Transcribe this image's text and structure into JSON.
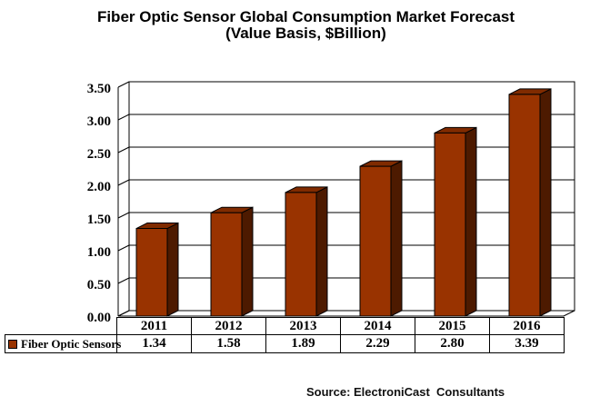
{
  "title": {
    "line1": "Fiber Optic Sensor Global Consumption Market Forecast",
    "line2": "(Value Basis, $Billion)"
  },
  "legend": {
    "label": "Fiber Optic Sensors",
    "marker_color": "#993300"
  },
  "source": "Source: ElectroniCast  Consultants",
  "colors": {
    "bar_front": "#993300",
    "bar_top": "#802B00",
    "bar_side": "#4D1A00",
    "outline": "#000000",
    "background": "#FFFFFF"
  },
  "chart_data": {
    "type": "bar",
    "style": "3d-column",
    "title": "Fiber Optic Sensor Global Consumption Market Forecast (Value Basis, $Billion)",
    "categories": [
      "2011",
      "2012",
      "2013",
      "2014",
      "2015",
      "2016"
    ],
    "series": [
      {
        "name": "Fiber Optic Sensors",
        "values": [
          1.34,
          1.58,
          1.89,
          2.29,
          2.8,
          3.39
        ]
      }
    ],
    "value_labels": [
      "1.34",
      "1.58",
      "1.89",
      "2.29",
      "2.80",
      "3.39"
    ],
    "xlabel": "",
    "ylabel": "",
    "ylim": [
      0.0,
      3.5
    ],
    "ytick_step": 0.5,
    "ytick_labels": [
      "3.50",
      "3.00",
      "2.50",
      "2.00",
      "1.50",
      "1.00",
      "0.50",
      "0.00"
    ],
    "grid": true,
    "legend_position": "bottom-left",
    "data_table_shown": true
  }
}
